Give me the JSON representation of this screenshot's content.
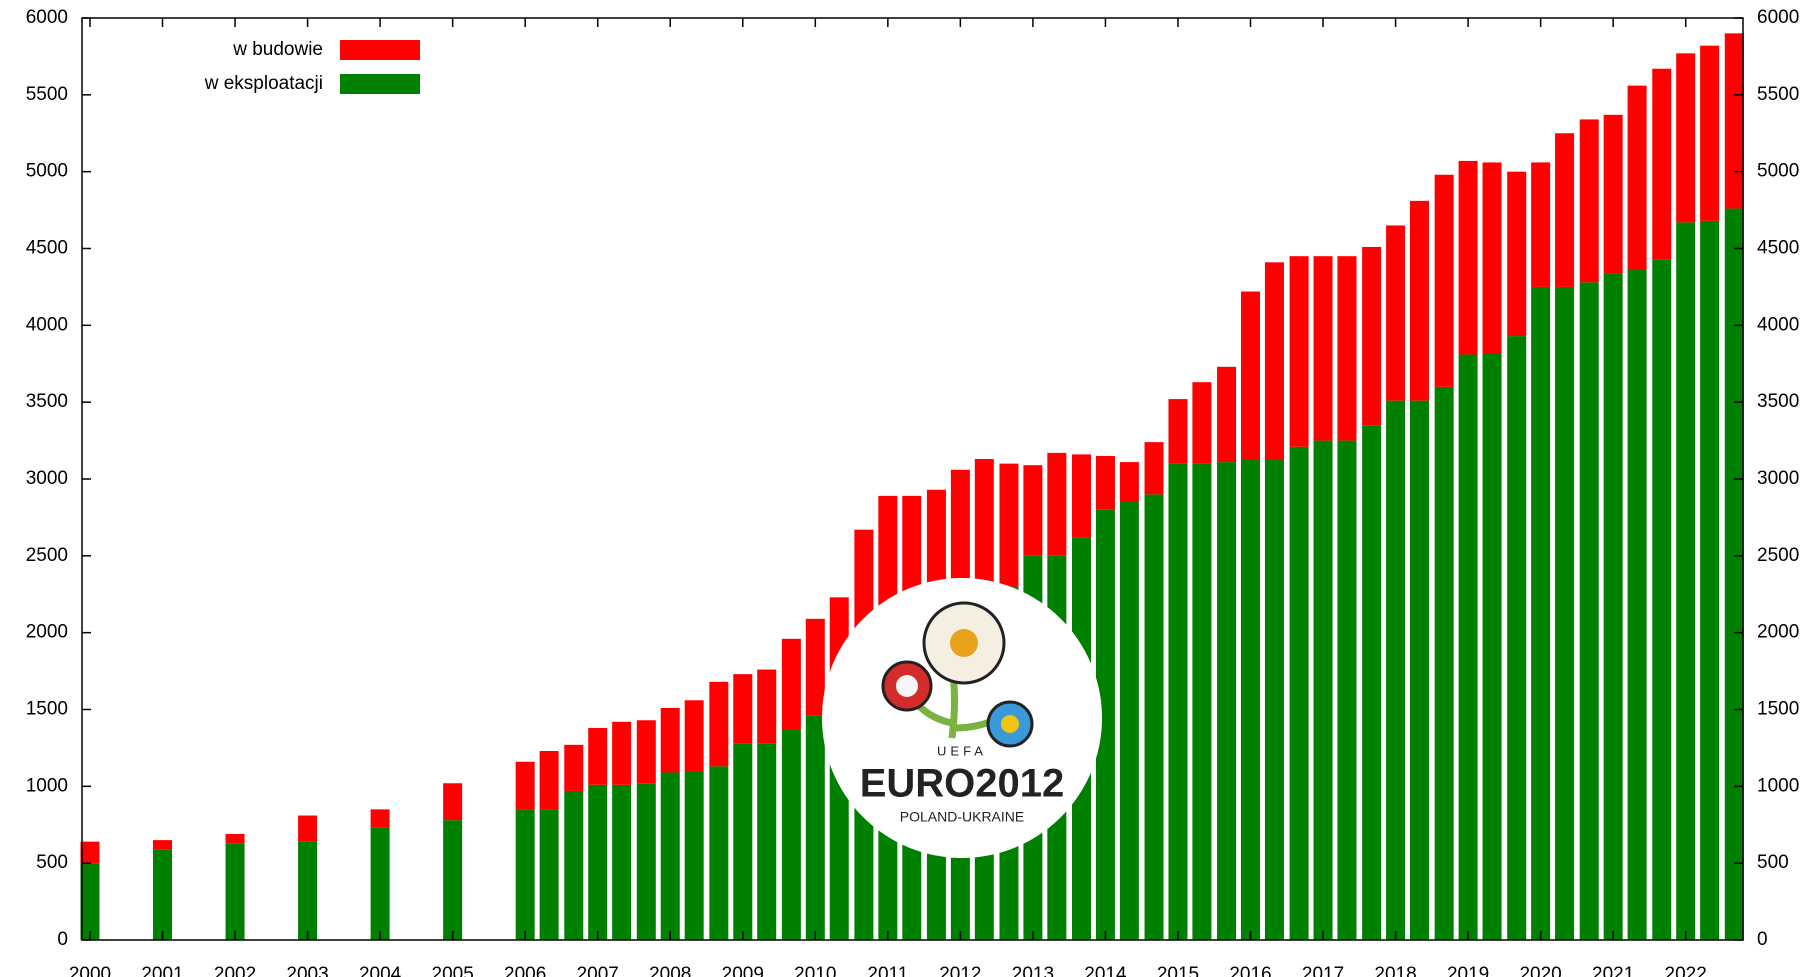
{
  "chart_data": {
    "type": "stacked_bar",
    "x": [
      2000,
      2001,
      2002,
      2003,
      2004,
      2005,
      2006,
      2006.33,
      2006.67,
      2007,
      2007.33,
      2007.67,
      2008,
      2008.33,
      2008.67,
      2009,
      2009.33,
      2009.67,
      2010,
      2010.33,
      2010.67,
      2011,
      2011.33,
      2011.67,
      2012,
      2012.33,
      2012.67,
      2013,
      2013.33,
      2013.67,
      2014,
      2014.33,
      2014.67,
      2015,
      2015.33,
      2015.67,
      2016,
      2016.33,
      2016.67,
      2017,
      2017.33,
      2017.67,
      2018,
      2018.33,
      2018.67,
      2019,
      2019.33,
      2019.67,
      2020,
      2020.33,
      2020.67,
      2021,
      2021.33,
      2021.67,
      2022,
      2022.33,
      2022.67
    ],
    "series": [
      {
        "name": "w eksploatacji",
        "color": "#008000",
        "values": [
          500,
          590,
          630,
          640,
          730,
          780,
          850,
          850,
          970,
          1010,
          1010,
          1020,
          1090,
          1100,
          1130,
          1280,
          1280,
          1370,
          1460,
          1500,
          1800,
          1900,
          1950,
          2000,
          2100,
          2200,
          2300,
          2500,
          2500,
          2620,
          2800,
          2850,
          2900,
          3100,
          3100,
          3110,
          3130,
          3130,
          3210,
          3250,
          3250,
          3350,
          3510,
          3510,
          3600,
          3810,
          3820,
          3930,
          4250,
          4250,
          4280,
          4340,
          4360,
          4430,
          4670,
          4680,
          4760
        ]
      },
      {
        "name": "w budowie",
        "color": "#ff0000",
        "values": [
          140,
          60,
          60,
          170,
          120,
          240,
          310,
          380,
          300,
          370,
          410,
          410,
          420,
          460,
          550,
          450,
          480,
          590,
          630,
          730,
          870,
          990,
          940,
          930,
          960,
          930,
          800,
          590,
          670,
          540,
          350,
          260,
          340,
          420,
          530,
          620,
          1090,
          1280,
          1240,
          1200,
          1200,
          1160,
          1140,
          1300,
          1380,
          1260,
          1240,
          1070,
          810,
          1000,
          1060,
          1030,
          1200,
          1240,
          1100,
          1140,
          1140
        ]
      }
    ],
    "xlim": [
      1999.89,
      2022.79
    ],
    "xticks": [
      2000,
      2001,
      2002,
      2003,
      2004,
      2005,
      2006,
      2007,
      2008,
      2009,
      2010,
      2011,
      2012,
      2013,
      2014,
      2015,
      2016,
      2017,
      2018,
      2019,
      2020,
      2021,
      2022
    ],
    "ylim": [
      0,
      6000
    ],
    "yticks": [
      0,
      500,
      1000,
      1500,
      2000,
      2500,
      3000,
      3500,
      4000,
      4500,
      5000,
      5500,
      6000
    ],
    "legend": "upper left",
    "logo": {
      "top": "UEFA",
      "text": "EURO2012",
      "subtext": "POLAND-UKRAINE"
    }
  }
}
